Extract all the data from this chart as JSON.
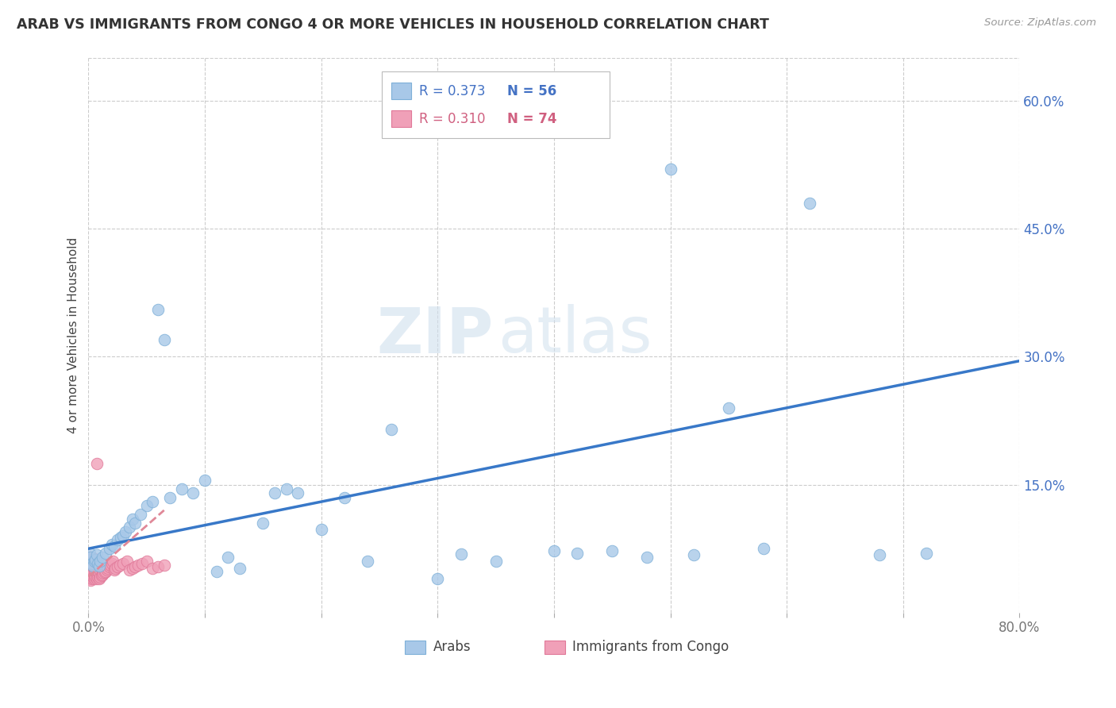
{
  "title": "ARAB VS IMMIGRANTS FROM CONGO 4 OR MORE VEHICLES IN HOUSEHOLD CORRELATION CHART",
  "source": "Source: ZipAtlas.com",
  "ylabel": "4 or more Vehicles in Household",
  "watermark_zip": "ZIP",
  "watermark_atlas": "atlas",
  "xlim": [
    0.0,
    0.8
  ],
  "ylim": [
    0.0,
    0.65
  ],
  "arab_color": "#A8C8E8",
  "arab_edge_color": "#7EB0D8",
  "congo_color": "#F0A0B8",
  "congo_edge_color": "#E07898",
  "trend_arab_color": "#3878C8",
  "trend_congo_color": "#E08898",
  "legend_arab_R": "R = 0.373",
  "legend_arab_N": "N = 56",
  "legend_congo_R": "R = 0.310",
  "legend_congo_N": "N = 74",
  "arab_x": [
    0.001,
    0.002,
    0.003,
    0.004,
    0.005,
    0.006,
    0.007,
    0.008,
    0.009,
    0.01,
    0.012,
    0.015,
    0.018,
    0.02,
    0.022,
    0.025,
    0.028,
    0.03,
    0.032,
    0.035,
    0.038,
    0.04,
    0.045,
    0.05,
    0.055,
    0.06,
    0.065,
    0.07,
    0.08,
    0.09,
    0.1,
    0.11,
    0.12,
    0.13,
    0.15,
    0.16,
    0.17,
    0.18,
    0.2,
    0.22,
    0.24,
    0.26,
    0.3,
    0.32,
    0.35,
    0.4,
    0.42,
    0.45,
    0.48,
    0.5,
    0.52,
    0.55,
    0.58,
    0.62,
    0.68,
    0.72
  ],
  "arab_y": [
    0.07,
    0.065,
    0.058,
    0.055,
    0.06,
    0.062,
    0.068,
    0.058,
    0.055,
    0.06,
    0.065,
    0.07,
    0.075,
    0.08,
    0.078,
    0.085,
    0.088,
    0.09,
    0.095,
    0.1,
    0.11,
    0.105,
    0.115,
    0.125,
    0.13,
    0.355,
    0.32,
    0.135,
    0.145,
    0.14,
    0.155,
    0.048,
    0.065,
    0.052,
    0.105,
    0.14,
    0.145,
    0.14,
    0.098,
    0.135,
    0.06,
    0.215,
    0.04,
    0.069,
    0.06,
    0.072,
    0.07,
    0.072,
    0.065,
    0.52,
    0.068,
    0.24,
    0.075,
    0.48,
    0.068,
    0.07
  ],
  "congo_x": [
    0.001,
    0.001,
    0.001,
    0.001,
    0.001,
    0.002,
    0.002,
    0.002,
    0.002,
    0.002,
    0.002,
    0.003,
    0.003,
    0.003,
    0.003,
    0.003,
    0.004,
    0.004,
    0.004,
    0.004,
    0.005,
    0.005,
    0.005,
    0.005,
    0.005,
    0.006,
    0.006,
    0.006,
    0.006,
    0.007,
    0.007,
    0.007,
    0.007,
    0.008,
    0.008,
    0.008,
    0.009,
    0.009,
    0.009,
    0.01,
    0.01,
    0.01,
    0.011,
    0.011,
    0.012,
    0.012,
    0.013,
    0.013,
    0.014,
    0.014,
    0.015,
    0.015,
    0.016,
    0.017,
    0.018,
    0.019,
    0.02,
    0.021,
    0.022,
    0.023,
    0.025,
    0.027,
    0.03,
    0.033,
    0.035,
    0.038,
    0.04,
    0.043,
    0.046,
    0.05,
    0.055,
    0.06,
    0.065,
    0.007
  ],
  "congo_y": [
    0.04,
    0.045,
    0.05,
    0.055,
    0.06,
    0.038,
    0.042,
    0.048,
    0.055,
    0.06,
    0.065,
    0.04,
    0.045,
    0.05,
    0.058,
    0.063,
    0.042,
    0.048,
    0.054,
    0.06,
    0.04,
    0.045,
    0.052,
    0.058,
    0.063,
    0.042,
    0.048,
    0.055,
    0.06,
    0.04,
    0.046,
    0.052,
    0.058,
    0.042,
    0.048,
    0.055,
    0.04,
    0.046,
    0.055,
    0.042,
    0.05,
    0.058,
    0.044,
    0.052,
    0.045,
    0.053,
    0.046,
    0.054,
    0.047,
    0.055,
    0.048,
    0.056,
    0.05,
    0.052,
    0.054,
    0.056,
    0.058,
    0.06,
    0.05,
    0.052,
    0.054,
    0.056,
    0.058,
    0.06,
    0.05,
    0.052,
    0.054,
    0.056,
    0.058,
    0.06,
    0.052,
    0.054,
    0.056,
    0.175
  ],
  "arab_trend_x": [
    0.0,
    0.8
  ],
  "arab_trend_y": [
    0.075,
    0.295
  ],
  "congo_trend_x": [
    0.0,
    0.065
  ],
  "congo_trend_y": [
    0.042,
    0.12
  ]
}
